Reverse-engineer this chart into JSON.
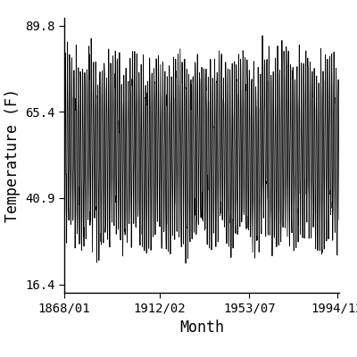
{
  "title": "",
  "xlabel": "Month",
  "ylabel": "Temperature (F)",
  "x_start_year": 1868,
  "x_start_month": 1,
  "x_end_year": 1994,
  "x_end_month": 12,
  "y_ticks": [
    16.4,
    40.9,
    65.4,
    89.8
  ],
  "x_tick_labels": [
    "1868/01",
    "1912/02",
    "1953/07",
    "1994/12"
  ],
  "x_tick_positions_months": [
    0,
    529,
    1026,
    1511
  ],
  "annual_mean": 54.1,
  "annual_amplitude": 24.0,
  "noise_std": 3.5,
  "line_color": "#000000",
  "bg_color": "#ffffff",
  "font_family": "monospace",
  "font_size": 10,
  "ylim": [
    14.0,
    92.0
  ],
  "figsize": [
    4.0,
    4.0
  ],
  "dpi": 100
}
